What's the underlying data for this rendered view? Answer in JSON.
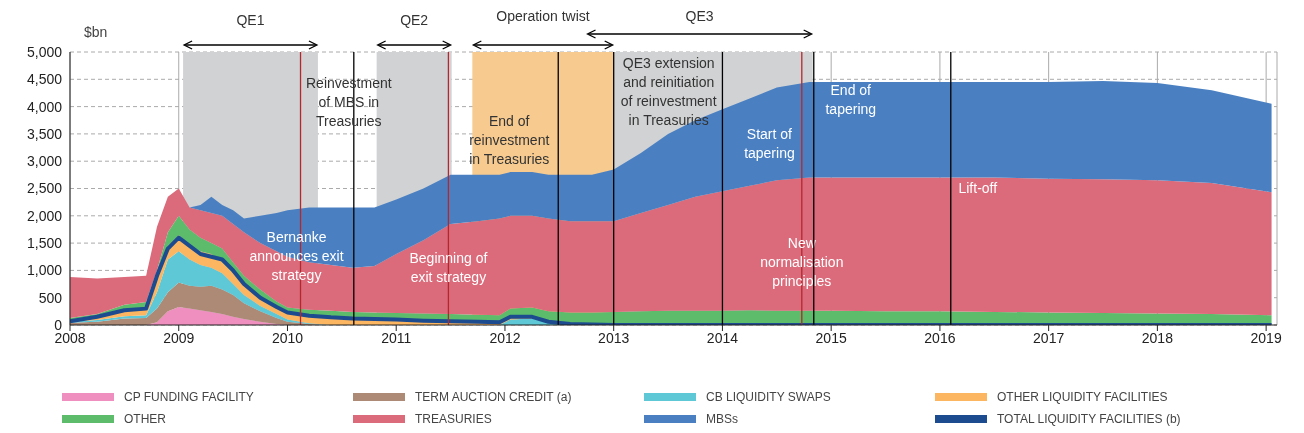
{
  "chart_data": {
    "type": "area",
    "stacked": true,
    "ylabel": "$bn",
    "x": [
      2008.0,
      2008.25,
      2008.5,
      2008.7,
      2008.8,
      2008.9,
      2009.0,
      2009.1,
      2009.2,
      2009.3,
      2009.4,
      2009.5,
      2009.6,
      2009.75,
      2009.9,
      2010.0,
      2010.2,
      2010.4,
      2010.6,
      2010.8,
      2011.0,
      2011.25,
      2011.5,
      2011.75,
      2011.95,
      2012.05,
      2012.25,
      2012.4,
      2012.6,
      2012.8,
      2013.0,
      2013.25,
      2013.5,
      2013.75,
      2014.0,
      2014.25,
      2014.5,
      2014.8,
      2015.0,
      2015.5,
      2016.0,
      2016.5,
      2017.0,
      2017.5,
      2018.0,
      2018.5,
      2019.05
    ],
    "series": [
      {
        "name": "CP FUNDING FACILITY",
        "color": "#ee8fbf",
        "values": [
          0,
          0,
          0,
          0,
          50,
          250,
          330,
          300,
          270,
          240,
          200,
          150,
          110,
          60,
          20,
          0,
          0,
          0,
          0,
          0,
          0,
          0,
          0,
          0,
          0,
          0,
          0,
          0,
          0,
          0,
          0,
          0,
          0,
          0,
          0,
          0,
          0,
          0,
          0,
          0,
          0,
          0,
          0,
          0,
          0,
          0,
          0
        ]
      },
      {
        "name": "TERM AUCTION CREDIT (a)",
        "color": "#ad8a75",
        "values": [
          40,
          60,
          120,
          130,
          250,
          350,
          450,
          420,
          430,
          480,
          450,
          400,
          290,
          190,
          110,
          60,
          20,
          0,
          0,
          0,
          0,
          0,
          0,
          0,
          0,
          0,
          0,
          0,
          0,
          0,
          0,
          0,
          0,
          0,
          0,
          0,
          0,
          0,
          0,
          0,
          0,
          0,
          0,
          0,
          0,
          0,
          0
        ]
      },
      {
        "name": "CB LIQUIDITY SWAPS",
        "color": "#5fc8d6",
        "values": [
          20,
          30,
          40,
          50,
          300,
          600,
          570,
          480,
          400,
          330,
          300,
          200,
          150,
          100,
          70,
          40,
          10,
          0,
          0,
          0,
          0,
          0,
          0,
          0,
          0,
          100,
          120,
          40,
          10,
          0,
          0,
          0,
          0,
          0,
          0,
          0,
          0,
          0,
          0,
          0,
          0,
          0,
          0,
          0,
          0,
          0,
          0
        ]
      },
      {
        "name": "OTHER LIQUIDITY FACILITIES",
        "color": "#fcb661",
        "values": [
          20,
          30,
          90,
          100,
          200,
          250,
          300,
          250,
          250,
          250,
          200,
          200,
          170,
          170,
          120,
          120,
          120,
          120,
          100,
          90,
          80,
          70,
          60,
          50,
          40,
          40,
          30,
          20,
          10,
          10,
          0,
          0,
          0,
          0,
          0,
          0,
          0,
          0,
          0,
          0,
          0,
          0,
          0,
          0,
          0,
          0,
          0
        ]
      },
      {
        "name": "OTHER",
        "color": "#5cbc6b",
        "values": [
          50,
          80,
          120,
          140,
          200,
          250,
          350,
          300,
          250,
          200,
          250,
          200,
          180,
          130,
          110,
          100,
          130,
          140,
          140,
          140,
          140,
          140,
          140,
          140,
          140,
          160,
          170,
          190,
          210,
          220,
          240,
          250,
          260,
          260,
          260,
          270,
          260,
          260,
          260,
          250,
          250,
          240,
          230,
          220,
          210,
          200,
          180
        ]
      },
      {
        "name": "TREASURIES",
        "color": "#db6b7b",
        "values": [
          750,
          650,
          510,
          480,
          800,
          650,
          500,
          400,
          500,
          550,
          600,
          700,
          800,
          850,
          920,
          930,
          870,
          840,
          810,
          850,
          1080,
          1340,
          1650,
          1710,
          1770,
          1700,
          1680,
          1700,
          1670,
          1670,
          1660,
          1800,
          1940,
          2090,
          2190,
          2280,
          2390,
          2440,
          2440,
          2450,
          2450,
          2460,
          2450,
          2450,
          2440,
          2400,
          2250
        ]
      },
      {
        "name": "MBSs",
        "color": "#4a80c2",
        "values": [
          0,
          0,
          0,
          0,
          0,
          0,
          0,
          0,
          100,
          300,
          200,
          250,
          250,
          500,
          700,
          850,
          1000,
          1050,
          1100,
          1070,
          1000,
          950,
          900,
          850,
          800,
          800,
          800,
          800,
          850,
          850,
          950,
          1100,
          1300,
          1400,
          1500,
          1600,
          1700,
          1750,
          1750,
          1750,
          1750,
          1750,
          1770,
          1800,
          1780,
          1700,
          1620
        ]
      },
      {
        "name": "TOTAL LIQUIDITY FACILITIES (b)",
        "type": "line",
        "color": "#1d4b8f",
        "values": [
          70,
          150,
          270,
          300,
          900,
          1400,
          1600,
          1450,
          1300,
          1250,
          1200,
          1000,
          750,
          500,
          330,
          230,
          170,
          140,
          120,
          110,
          100,
          80,
          70,
          60,
          50,
          150,
          150,
          60,
          20,
          10,
          0,
          0,
          0,
          0,
          0,
          0,
          0,
          0,
          0,
          0,
          0,
          0,
          0,
          0,
          0,
          0,
          0
        ]
      }
    ],
    "xlim": [
      2008,
      2019.1
    ],
    "xticks": [
      2008,
      2009,
      2010,
      2011,
      2012,
      2013,
      2014,
      2015,
      2016,
      2017,
      2018,
      2019
    ],
    "ylim": [
      0,
      5000
    ],
    "yticks": [
      0,
      500,
      {
        "value": 1000,
        "label": "1,000"
      },
      {
        "value": 1500,
        "label": "1,500"
      },
      {
        "value": 2000,
        "label": "2,000"
      },
      {
        "value": 2500,
        "label": "2,500"
      },
      {
        "value": 3000,
        "label": "3,000"
      },
      {
        "value": 3500,
        "label": "3,500"
      },
      {
        "value": 4000,
        "label": "4,000"
      },
      {
        "value": 4500,
        "label": "4,500"
      },
      {
        "value": 5000,
        "label": "5,000"
      }
    ],
    "bands": [
      {
        "axis": "x",
        "from": 2012.75,
        "to": 2014.83,
        "label": "QE3",
        "color": "#d1d2d4"
      },
      {
        "axis": "x",
        "from": 2009.04,
        "to": 2010.28,
        "label": "QE1",
        "color": "#d1d2d4"
      },
      {
        "axis": "x",
        "from": 2010.82,
        "to": 2011.51,
        "label": "QE2",
        "color": "#d1d2d4"
      },
      {
        "axis": "x",
        "from": 2011.7,
        "to": 2013.0,
        "label": "Operation twist",
        "color": "#f7cb90"
      }
    ],
    "ref_lines": [
      {
        "axis": "x",
        "value": 2010.12,
        "label": "Bernanke announces exit strategy",
        "color": "#b5272d"
      },
      {
        "axis": "x",
        "value": 2010.61,
        "label": "Reinvestment of MBS in Treasuries",
        "color": "#000000"
      },
      {
        "axis": "x",
        "value": 2011.48,
        "label": "Beginning of exit strategy",
        "color": "#b5272d"
      },
      {
        "axis": "x",
        "value": 2012.49,
        "label": "End of reinvestment in Treasuries",
        "color": "#000000"
      },
      {
        "axis": "x",
        "value": 2013.0,
        "label": "QE3 extension and reinitiation of reinvestment in Treasuries",
        "color": "#000000"
      },
      {
        "axis": "x",
        "value": 2014.0,
        "label": "Start of tapering",
        "color": "#000000"
      },
      {
        "axis": "x",
        "value": 2014.73,
        "label": "New normalisation principles",
        "color": "#b5272d"
      },
      {
        "axis": "x",
        "value": 2014.84,
        "label": "End of tapering",
        "color": "#000000"
      },
      {
        "axis": "x",
        "value": 2016.1,
        "label": "Lift-off",
        "color": "#000000"
      }
    ],
    "grid": true,
    "legend": "bottom"
  }
}
